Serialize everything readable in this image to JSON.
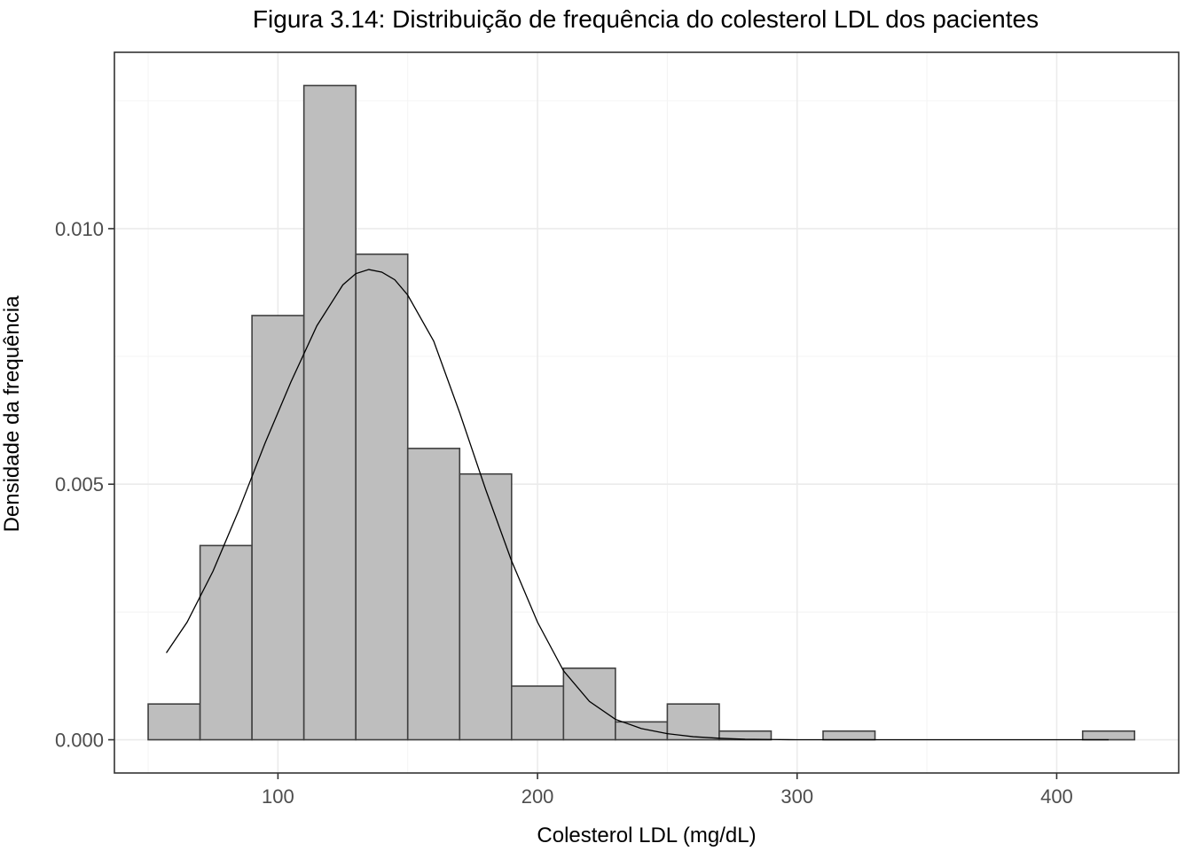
{
  "chart_data": {
    "type": "bar",
    "title": "Figura 3.14: Distribuição de frequência do colesterol LDL dos pacientes",
    "xlabel": "Colesterol LDL (mg/dL)",
    "ylabel": "Densidade da frequência",
    "xlim": [
      37,
      447
    ],
    "ylim": [
      -0.00065,
      0.01345
    ],
    "x_ticks": [
      100,
      200,
      300,
      400
    ],
    "x_tick_labels": [
      "100",
      "200",
      "300",
      "400"
    ],
    "y_ticks": [
      0.0,
      0.005,
      0.01
    ],
    "y_tick_labels": [
      "0.000",
      "0.005",
      "0.010"
    ],
    "grid": true,
    "bins": [
      {
        "x0": 50,
        "x1": 70,
        "density": 0.0007
      },
      {
        "x0": 70,
        "x1": 90,
        "density": 0.0038
      },
      {
        "x0": 90,
        "x1": 110,
        "density": 0.0083
      },
      {
        "x0": 110,
        "x1": 130,
        "density": 0.0128
      },
      {
        "x0": 130,
        "x1": 150,
        "density": 0.0095
      },
      {
        "x0": 150,
        "x1": 170,
        "density": 0.0057
      },
      {
        "x0": 170,
        "x1": 190,
        "density": 0.0052
      },
      {
        "x0": 190,
        "x1": 210,
        "density": 0.00105
      },
      {
        "x0": 210,
        "x1": 230,
        "density": 0.0014
      },
      {
        "x0": 230,
        "x1": 250,
        "density": 0.00035
      },
      {
        "x0": 250,
        "x1": 270,
        "density": 0.0007
      },
      {
        "x0": 270,
        "x1": 290,
        "density": 0.00017
      },
      {
        "x0": 290,
        "x1": 310,
        "density": 0.0
      },
      {
        "x0": 310,
        "x1": 330,
        "density": 0.00017
      },
      {
        "x0": 330,
        "x1": 350,
        "density": 0.0
      },
      {
        "x0": 350,
        "x1": 370,
        "density": 0.0
      },
      {
        "x0": 370,
        "x1": 390,
        "density": 0.0
      },
      {
        "x0": 390,
        "x1": 410,
        "density": 0.0
      },
      {
        "x0": 410,
        "x1": 430,
        "density": 0.00017
      }
    ],
    "density_curve": {
      "x": [
        57,
        65,
        75,
        85,
        95,
        105,
        115,
        125,
        130,
        135,
        140,
        145,
        150,
        160,
        170,
        180,
        190,
        200,
        210,
        220,
        230,
        240,
        250,
        260,
        270,
        280,
        290,
        300,
        320,
        350,
        380,
        410,
        420
      ],
      "y": [
        0.0017,
        0.0023,
        0.0033,
        0.0045,
        0.0058,
        0.007,
        0.0081,
        0.0089,
        0.00912,
        0.0092,
        0.00915,
        0.009,
        0.0087,
        0.0078,
        0.0064,
        0.0049,
        0.0035,
        0.0023,
        0.00135,
        0.00075,
        0.0004,
        0.00022,
        0.00012,
        6e-05,
        3e-05,
        1e-05,
        5e-06,
        0.0,
        0.0,
        0.0,
        0.0,
        0.0,
        0.0
      ]
    }
  }
}
